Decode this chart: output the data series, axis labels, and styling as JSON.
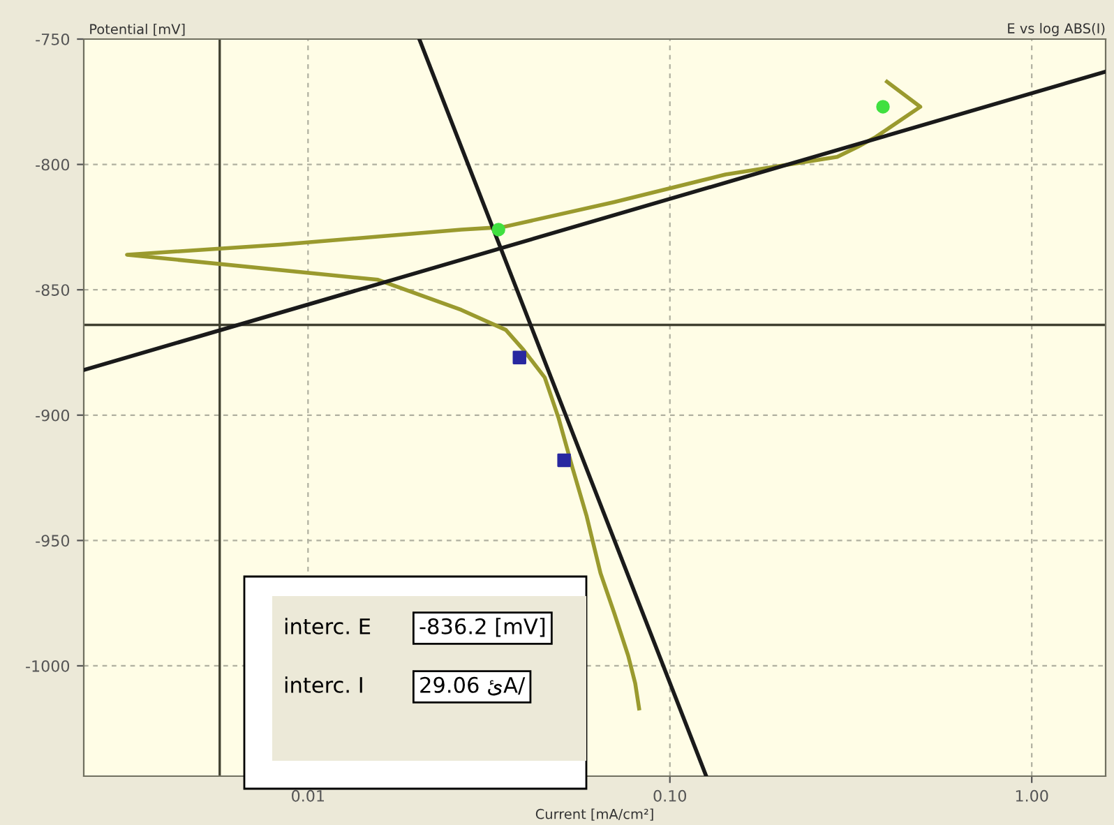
{
  "chart_data": {
    "type": "line",
    "title": "E vs log ABS(I)",
    "xlabel": "Current [mA/cm²]",
    "ylabel": "Potential [mV]",
    "log": "x",
    "xlim": [
      0.0024,
      1.6
    ],
    "ylim": [
      -1044,
      -750
    ],
    "xticks": [
      {
        "value": 0.01,
        "label": "0.01"
      },
      {
        "value": 0.1,
        "label": "0.10"
      },
      {
        "value": 1,
        "label": "1.00"
      }
    ],
    "yticks": [
      -750,
      -800,
      -850,
      -900,
      -950,
      -1000
    ],
    "grid": true,
    "series": [
      {
        "color": "#9a9a2e",
        "x": [
          0.0822,
          0.0802,
          0.0767,
          0.0702,
          0.0643,
          0.0588,
          0.0538,
          0.0492,
          0.0451,
          0.0394,
          0.0352,
          0.0265,
          0.0156,
          0.00316,
          0.00838,
          0.0265,
          0.0345,
          0.0702,
          0.1425,
          0.29,
          0.33,
          0.371,
          0.492,
          0.398
        ],
        "values": [
          -1017,
          -1007,
          -996,
          -979,
          -963,
          -940,
          -921,
          -901,
          -885,
          -874,
          -866,
          -858,
          -846,
          -836,
          -832,
          -826,
          -825,
          -815,
          -804,
          -797,
          -793,
          -789,
          -777,
          -767
        ]
      },
      {
        "color": "#1a1a1a",
        "x": [
          0.0024,
          1.6
        ],
        "values": [
          -882,
          -763
        ]
      },
      {
        "color": "#1a1a1a",
        "x": [
          0.0203,
          0.126
        ],
        "values": [
          -750,
          -1044
        ]
      },
      {
        "type": "scatter",
        "marker": "circle",
        "color": "#40e040",
        "x": [
          0.0336,
          0.388
        ],
        "values": [
          -826,
          -777
        ]
      },
      {
        "type": "scatter",
        "marker": "square",
        "color": "#2828a0",
        "x": [
          0.0384,
          0.051
        ],
        "values": [
          -877,
          -918
        ]
      }
    ],
    "ref_lines": [
      {
        "axis": "x",
        "value": 0.0057,
        "color": "#404030"
      },
      {
        "axis": "y",
        "value": -864,
        "color": "#404030"
      }
    ],
    "annotations": [
      "interc. E",
      "-836.2 [mV]",
      "interc. I",
      "29.06 ئA/"
    ]
  }
}
